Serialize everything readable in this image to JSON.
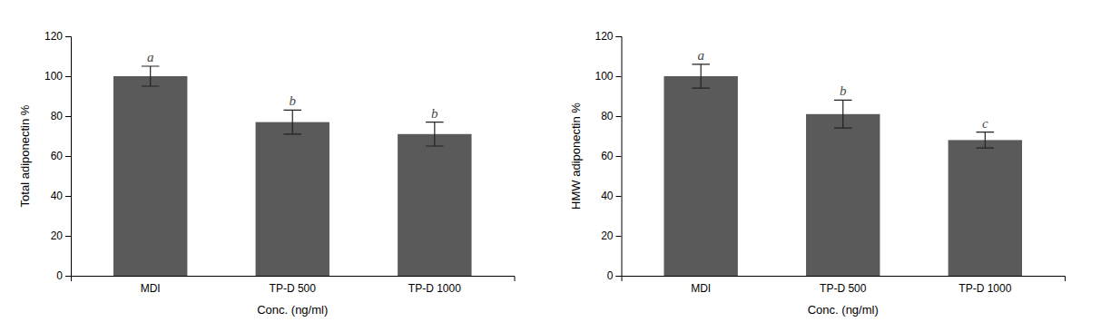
{
  "chart_data": [
    {
      "type": "bar",
      "categories": [
        "MDI",
        "TP-D 500",
        "TP-D 1000"
      ],
      "values": [
        100,
        77,
        71
      ],
      "errors": [
        5,
        6,
        6
      ],
      "annotations": [
        "a",
        "b",
        "b"
      ],
      "xlabel": "Conc. (ng/ml)",
      "ylabel": "Total adiponectin %",
      "ylim": [
        0,
        120
      ],
      "yticks": [
        0,
        20,
        40,
        60,
        80,
        100,
        120
      ],
      "color": "#5a5a5a",
      "grid": false
    },
    {
      "type": "bar",
      "categories": [
        "MDI",
        "TP-D 500",
        "TP-D 1000"
      ],
      "values": [
        100,
        81,
        68
      ],
      "errors": [
        6,
        7,
        4
      ],
      "annotations": [
        "a",
        "b",
        "c"
      ],
      "xlabel": "Conc. (ng/ml)",
      "ylabel": "HMW adiponectin %",
      "ylim": [
        0,
        120
      ],
      "yticks": [
        0,
        20,
        40,
        60,
        80,
        100,
        120
      ],
      "color": "#5a5a5a",
      "grid": false
    }
  ]
}
